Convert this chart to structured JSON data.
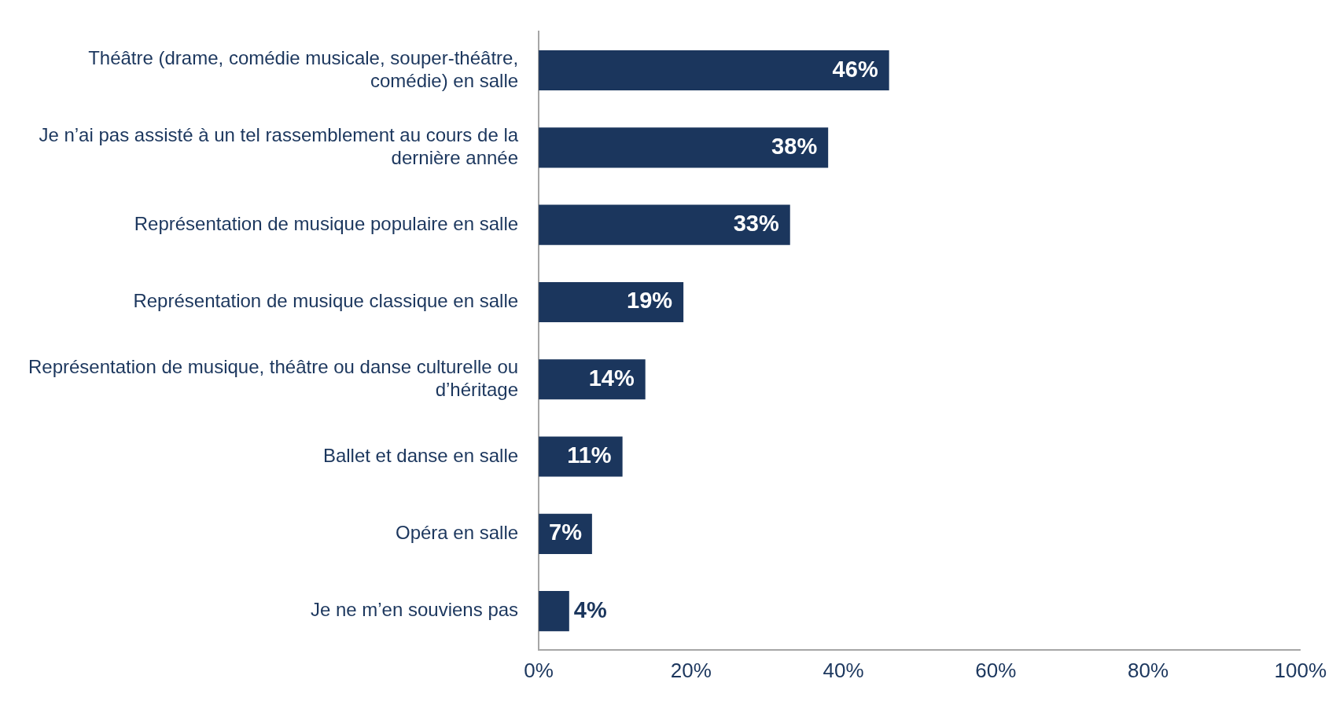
{
  "chart_data": {
    "type": "bar",
    "orientation": "horizontal",
    "categories": [
      "Théâtre (drame, comédie musicale, souper-théâtre, comédie) en salle",
      "Je n’ai pas assisté à un tel rassemblement au cours de la dernière année",
      "Représentation de musique populaire en salle",
      "Représentation de musique classique en salle",
      "Représentation de musique, théâtre ou danse culturelle ou d’héritage",
      "Ballet et danse en salle",
      "Opéra en salle",
      "Je ne m’en souviens pas"
    ],
    "values": [
      46,
      38,
      33,
      19,
      14,
      11,
      7,
      4
    ],
    "value_labels": [
      "46%",
      "38%",
      "33%",
      "19%",
      "14%",
      "11%",
      "7%",
      "4%"
    ],
    "color": "#1b365d",
    "xlim": [
      0,
      100
    ],
    "xticks": [
      {
        "value": 0,
        "label": "0%"
      },
      {
        "value": 20,
        "label": "20%"
      },
      {
        "value": 40,
        "label": "40%"
      },
      {
        "value": 60,
        "label": "60%"
      },
      {
        "value": 80,
        "label": "80%"
      },
      {
        "value": 100,
        "label": "100%"
      }
    ],
    "grid": false,
    "legend": false
  }
}
